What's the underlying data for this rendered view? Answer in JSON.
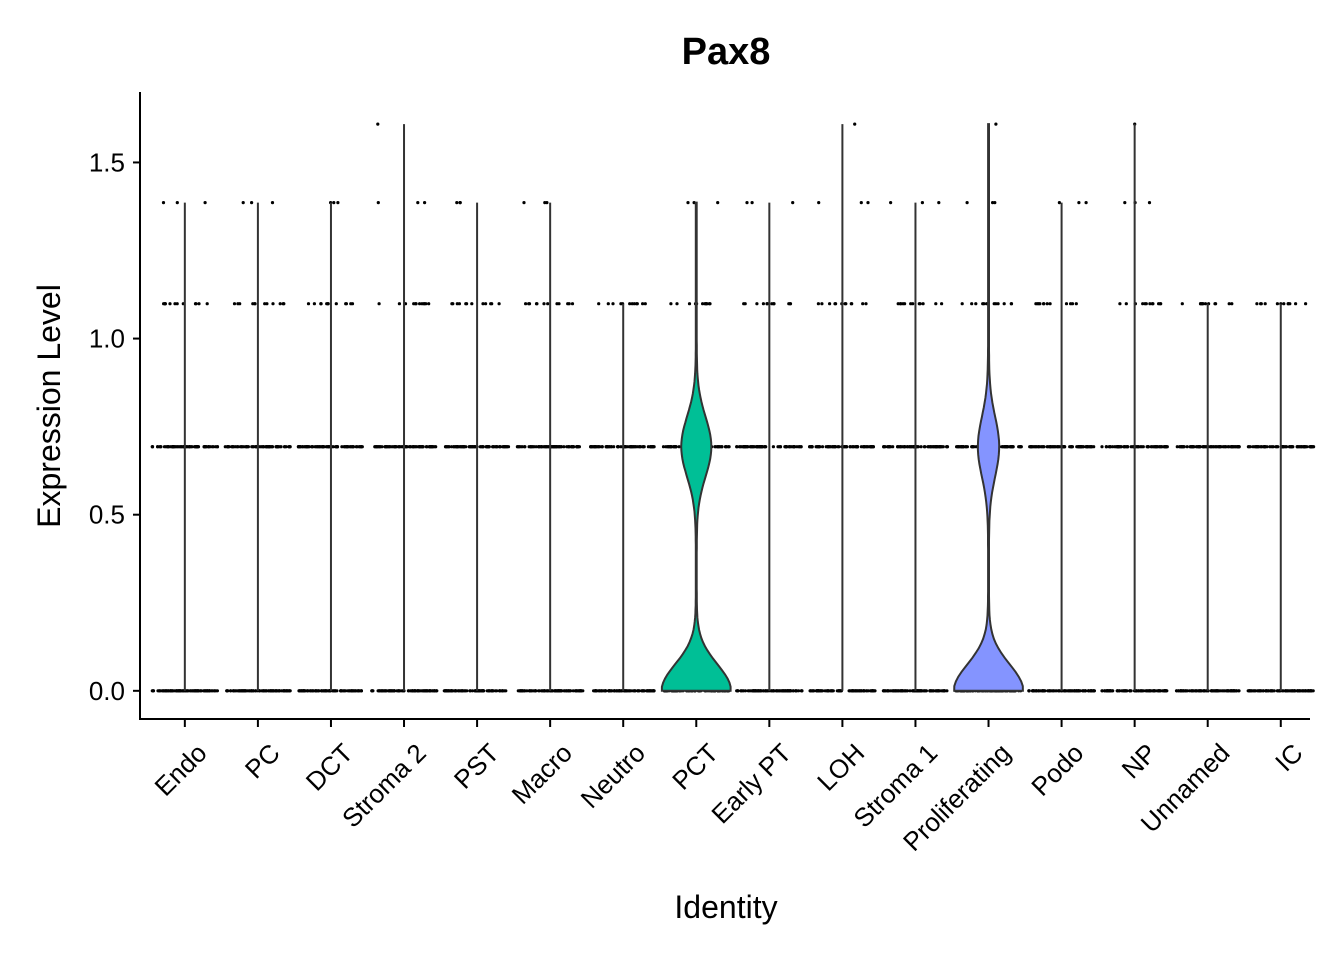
{
  "chart_data": {
    "type": "violin",
    "title": "Pax8",
    "xlabel": "Identity",
    "ylabel": "Expression Level",
    "ylim": [
      -0.08,
      1.7
    ],
    "yticks": [
      0.0,
      0.5,
      1.0,
      1.5
    ],
    "ytick_labels": [
      "0.0",
      "0.5",
      "1.0",
      "1.5"
    ],
    "categories": [
      "Endo",
      "PC",
      "DCT",
      "Stroma 2",
      "PST",
      "Macro",
      "Neutro",
      "PCT",
      "Early PT",
      "LOH",
      "Stroma 1",
      "Proliferating",
      "Podo",
      "NP",
      "Unnamed",
      "IC"
    ],
    "max_expression": [
      1.386,
      1.386,
      1.386,
      1.609,
      1.386,
      1.386,
      1.099,
      1.386,
      1.386,
      1.609,
      1.386,
      1.609,
      1.386,
      1.609,
      1.099,
      1.099
    ],
    "expression_levels": [
      0.0,
      0.693,
      1.099,
      1.386,
      1.609
    ],
    "filled_violins": [
      {
        "category": "PCT",
        "color": "#00BF96",
        "density_peaks": [
          {
            "level": 0.0,
            "half_width": 0.47
          },
          {
            "level": 0.693,
            "half_width": 0.2
          }
        ]
      },
      {
        "category": "Proliferating",
        "color": "#8494FF",
        "density_peaks": [
          {
            "level": 0.0,
            "half_width": 0.47
          },
          {
            "level": 0.693,
            "half_width": 0.14
          }
        ]
      }
    ],
    "grid": false,
    "legend": "none"
  }
}
